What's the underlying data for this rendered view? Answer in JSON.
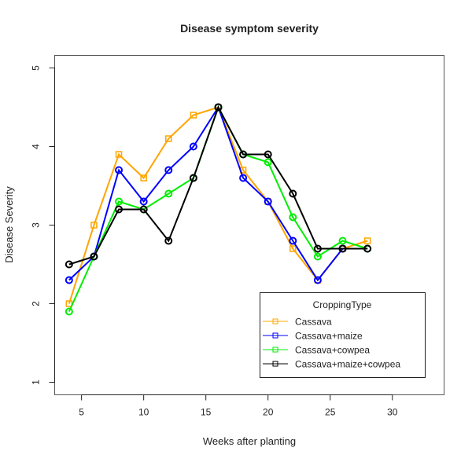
{
  "chart_data": {
    "type": "line",
    "title": "Disease symptom severity",
    "xlabel": "Weeks after planting",
    "ylabel": "Disease Severity",
    "xlim": [
      4,
      33
    ],
    "ylim": [
      1,
      5
    ],
    "xticks": [
      5,
      10,
      15,
      20,
      25,
      30
    ],
    "yticks": [
      1,
      2,
      3,
      4,
      5
    ],
    "grid": false,
    "x": [
      4,
      6,
      8,
      10,
      12,
      14,
      16,
      18,
      20,
      22,
      24,
      26,
      28
    ],
    "legend": {
      "title": "CroppingType",
      "placement": "bottom-right"
    },
    "series": [
      {
        "name": "Cassava",
        "color": "#ffa500",
        "marker": "square",
        "values": [
          2.0,
          3.0,
          3.9,
          3.6,
          4.1,
          4.4,
          4.5,
          3.7,
          3.3,
          2.7,
          2.3,
          2.7,
          2.8
        ]
      },
      {
        "name": "Cassava+maize",
        "color": "#0000ff",
        "marker": "circle",
        "values": [
          2.3,
          2.6,
          3.7,
          3.3,
          3.7,
          4.0,
          4.5,
          3.6,
          3.3,
          2.8,
          2.3,
          2.7,
          2.7
        ]
      },
      {
        "name": "Cassava+cowpea",
        "color": "#00ee00",
        "marker": "circle",
        "values": [
          1.9,
          2.6,
          3.3,
          3.2,
          3.4,
          3.6,
          4.5,
          3.9,
          3.8,
          3.1,
          2.6,
          2.8,
          2.7
        ]
      },
      {
        "name": "Cassava+maize+cowpea",
        "color": "#000000",
        "marker": "circle",
        "values": [
          2.5,
          2.6,
          3.2,
          3.2,
          2.8,
          3.6,
          4.5,
          3.9,
          3.9,
          3.4,
          2.7,
          2.7,
          2.7
        ]
      }
    ]
  }
}
